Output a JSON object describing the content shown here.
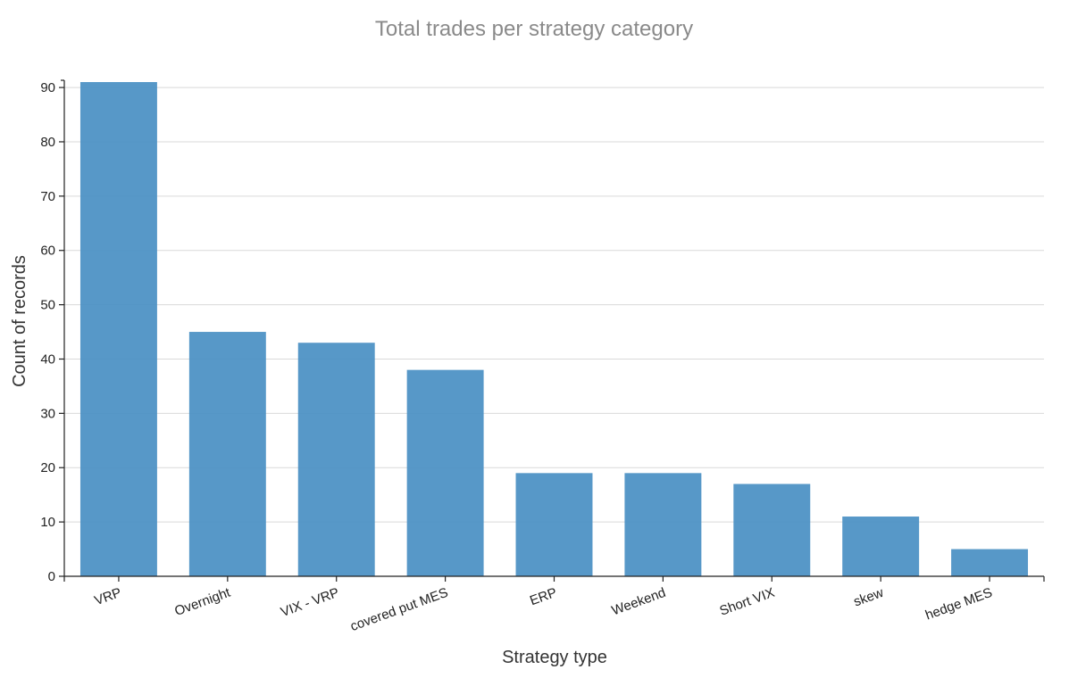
{
  "chart_data": {
    "type": "bar",
    "title": "Total trades per strategy category",
    "xlabel": "Strategy type",
    "ylabel": "Count of records",
    "categories": [
      "VRP",
      "Overnight",
      "VIX - VRP",
      "covered put MES",
      "ERP",
      "Weekend",
      "Short VIX",
      "skew",
      "hedge MES"
    ],
    "values": [
      91,
      45,
      43,
      38,
      19,
      19,
      17,
      11,
      5
    ],
    "ylim": [
      0,
      91
    ],
    "yticks": [
      0,
      10,
      20,
      30,
      40,
      50,
      60,
      70,
      80,
      90
    ],
    "grid": true,
    "bar_color": "#4a90c4"
  }
}
